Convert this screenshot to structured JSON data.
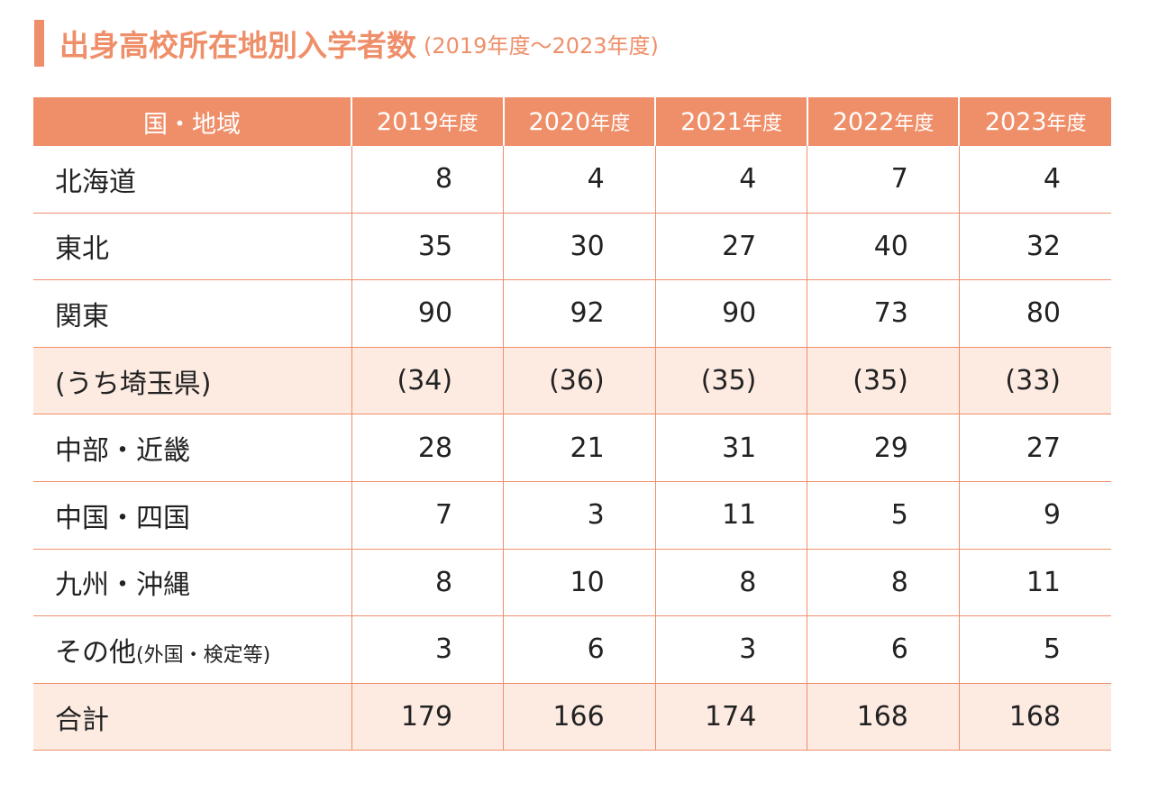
{
  "title": {
    "main": "出身高校所在地別入学者数",
    "sub": "(2019年度〜2023年度)"
  },
  "colors": {
    "accent": "#ef8f6a",
    "shade": "#fdebe2"
  },
  "table": {
    "region_header": "国・地域",
    "years": [
      {
        "num": "2019",
        "unit": "年度"
      },
      {
        "num": "2020",
        "unit": "年度"
      },
      {
        "num": "2021",
        "unit": "年度"
      },
      {
        "num": "2022",
        "unit": "年度"
      },
      {
        "num": "2023",
        "unit": "年度"
      }
    ],
    "rows": [
      {
        "label": "北海道",
        "note": "",
        "values": [
          "8",
          "4",
          "4",
          "7",
          "4"
        ]
      },
      {
        "label": "東北",
        "note": "",
        "values": [
          "35",
          "30",
          "27",
          "40",
          "32"
        ]
      },
      {
        "label": "関東",
        "note": "",
        "values": [
          "90",
          "92",
          "90",
          "73",
          "80"
        ]
      },
      {
        "label": "(うち埼玉県)",
        "note": "",
        "values": [
          "(34)",
          "(36)",
          "(35)",
          "(35)",
          "(33)"
        ]
      },
      {
        "label": "中部・近畿",
        "note": "",
        "values": [
          "28",
          "21",
          "31",
          "29",
          "27"
        ]
      },
      {
        "label": "中国・四国",
        "note": "",
        "values": [
          "7",
          "3",
          "11",
          "5",
          "9"
        ]
      },
      {
        "label": "九州・沖縄",
        "note": "",
        "values": [
          "8",
          "10",
          "8",
          "8",
          "11"
        ]
      },
      {
        "label": "その他",
        "note": "(外国・検定等)",
        "values": [
          "3",
          "6",
          "3",
          "6",
          "5"
        ]
      },
      {
        "label": "合計",
        "note": "",
        "values": [
          "179",
          "166",
          "174",
          "168",
          "168"
        ]
      }
    ]
  }
}
